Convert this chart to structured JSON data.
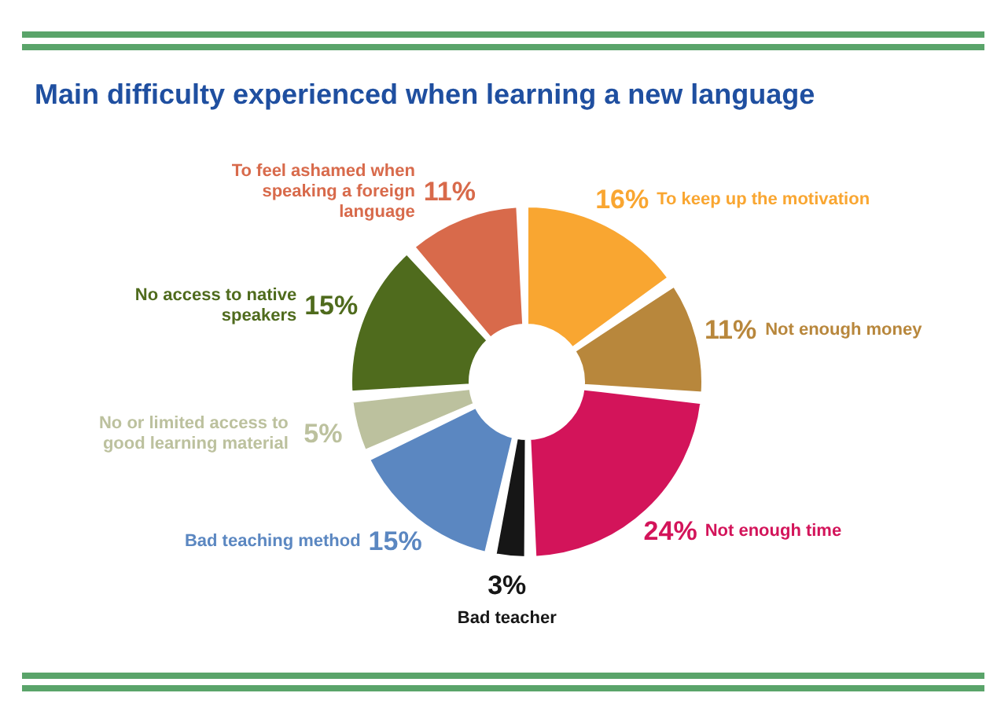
{
  "chart_data": {
    "type": "donut",
    "title": "Main difficulty experienced when learning a new language",
    "categories": [
      "To keep up the motivation",
      "Not enough money",
      "Not enough time",
      "Bad teacher",
      "Bad teaching method",
      "No or limited access to good learning material",
      "No access to native speakers",
      "To feel ashamed when speaking a foreign language"
    ],
    "values": [
      16,
      11,
      24,
      3,
      15,
      5,
      15,
      11
    ],
    "value_labels": [
      "16%",
      "11%",
      "24%",
      "3%",
      "15%",
      "5%",
      "15%",
      "11%"
    ],
    "colors": [
      "#f9a631",
      "#b8873c",
      "#d3145a",
      "#161616",
      "#5b87c1",
      "#bcc19e",
      "#4f6b1d",
      "#d86a4b"
    ]
  }
}
